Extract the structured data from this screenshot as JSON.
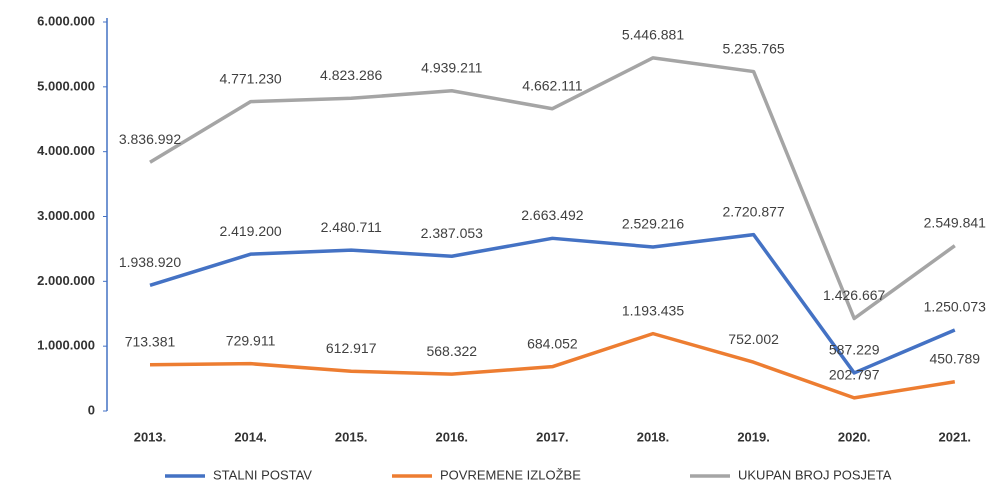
{
  "chart_data": {
    "type": "line",
    "categories": [
      "2013.",
      "2014.",
      "2015.",
      "2016.",
      "2017.",
      "2018.",
      "2019.",
      "2020.",
      "2021."
    ],
    "series": [
      {
        "name": "STALNI POSTAV",
        "color": "#4472c4",
        "values": [
          1938920,
          2419200,
          2480711,
          2387053,
          2663492,
          2529216,
          2720877,
          587229,
          1250073
        ],
        "value_labels": [
          "1.938.920",
          "2.419.200",
          "2.480.711",
          "2.387.053",
          "2.663.492",
          "2.529.216",
          "2.720.877",
          "587.229",
          "1.250.073"
        ]
      },
      {
        "name": "POVREMENE IZLOŽBE",
        "color": "#ed7d31",
        "values": [
          713381,
          729911,
          612917,
          568322,
          684052,
          1193435,
          752002,
          202797,
          450789
        ],
        "value_labels": [
          "713.381",
          "729.911",
          "612.917",
          "568.322",
          "684.052",
          "1.193.435",
          "752.002",
          "202.797",
          "450.789"
        ]
      },
      {
        "name": "UKUPAN BROJ POSJETA",
        "color": "#a5a5a5",
        "values": [
          3836992,
          4771230,
          4823286,
          4939211,
          4662111,
          5446881,
          5235765,
          1426667,
          2549841
        ],
        "value_labels": [
          "3.836.992",
          "4.771.230",
          "4.823.286",
          "4.939.211",
          "4.662.111",
          "5.446.881",
          "5.235.765",
          "1.426.667",
          "2.549.841"
        ]
      }
    ],
    "ylim": [
      0,
      6000000
    ],
    "yticks": [
      0,
      {
        "value": 1000000,
        "label": "1.000.000"
      },
      {
        "value": 2000000,
        "label": "2.000.000"
      },
      {
        "value": 3000000,
        "label": "3.000.000"
      },
      {
        "value": 4000000,
        "label": "4.000.000"
      },
      {
        "value": 5000000,
        "label": "5.000.000"
      },
      {
        "value": 6000000,
        "label": "6.000.000"
      }
    ],
    "grid": false,
    "legend": "bottom"
  }
}
